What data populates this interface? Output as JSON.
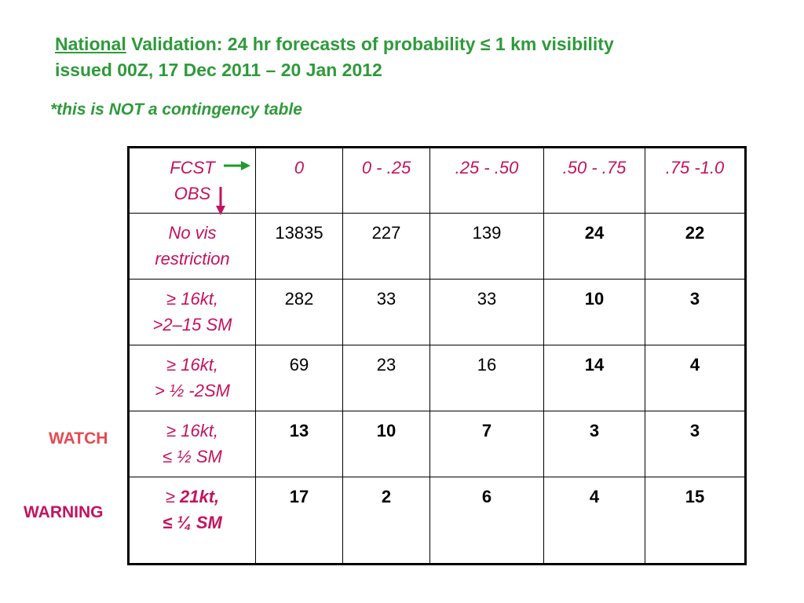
{
  "title": {
    "part1": "National",
    "part2": " Validation:  24 hr forecasts of probability ≤ 1 km visibility",
    "line2": "issued 00Z, 17 Dec 2011 – 20 Jan 2012"
  },
  "note": "*this is NOT a contingency table",
  "side_labels": {
    "watch": "WATCH",
    "warning": "WARNING"
  },
  "table": {
    "corner": {
      "fcst": "FCST",
      "obs": "OBS"
    },
    "columns": [
      "0",
      "0 - .25",
      ".25 - .50",
      ".50 - .75",
      ".75 -1.0"
    ],
    "rows": [
      {
        "label1": "No vis",
        "label2": "restriction",
        "values": [
          "13835",
          "227",
          "139",
          "24",
          "22"
        ]
      },
      {
        "label1": "≥ 16kt,",
        "label2": ">2–15 SM",
        "values": [
          "282",
          "33",
          "33",
          "10",
          "3"
        ]
      },
      {
        "label1": "≥ 16kt,",
        "label2": "> ½ -2SM",
        "values": [
          "69",
          "23",
          "16",
          "14",
          "4"
        ]
      },
      {
        "label1": "≥ 16kt,",
        "label2": "≤ ½ SM",
        "values": [
          "13",
          "10",
          "7",
          "3",
          "3"
        ]
      },
      {
        "label1_prefix": "≥ ",
        "label1": "21kt,",
        "label2": "≤ ¼ SM",
        "values": [
          "17",
          "2",
          "6",
          "4",
          "15"
        ]
      }
    ]
  },
  "colors": {
    "title_green": "#2e9a3a",
    "label_magenta": "#c5125e",
    "watch_red": "#e8484f"
  }
}
